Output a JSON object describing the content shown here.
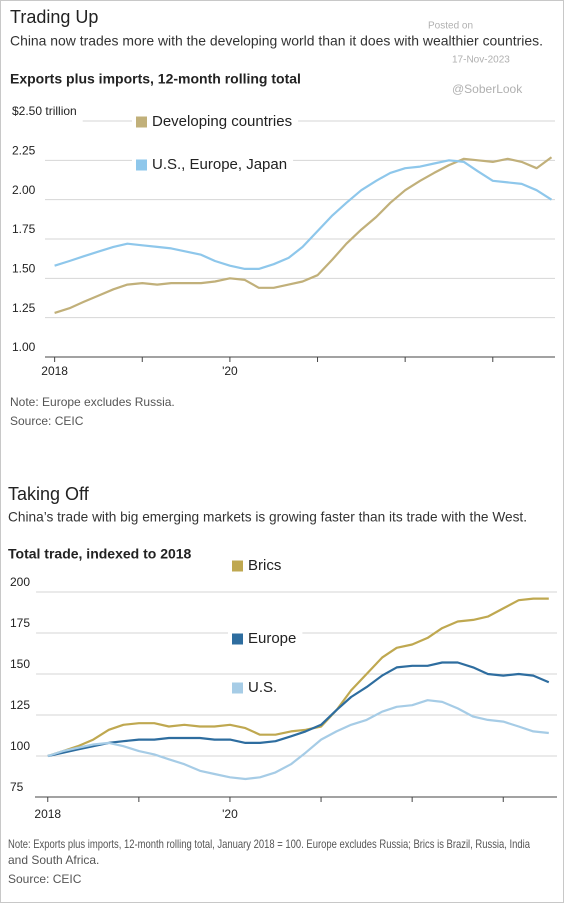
{
  "chart_data": [
    {
      "type": "line",
      "title": "Trading Up",
      "subtitle": "China now trades more with the developing world than it does with wealthier countries.",
      "axis_label": "Exports plus imports, 12-month rolling total",
      "note": [
        "Note: Europe excludes Russia."
      ],
      "source": "Source: CEIC",
      "x": [
        2018,
        2018.17,
        2018.33,
        2018.5,
        2018.67,
        2018.83,
        2019,
        2019.17,
        2019.33,
        2019.5,
        2019.67,
        2019.83,
        2020,
        2020.17,
        2020.33,
        2020.5,
        2020.67,
        2020.83,
        2021,
        2021.17,
        2021.33,
        2021.5,
        2021.67,
        2021.83,
        2022,
        2022.17,
        2022.33,
        2022.5,
        2022.67,
        2022.83,
        2023,
        2023.17,
        2023.33,
        2023.5,
        2023.67
      ],
      "series": [
        {
          "name": "Developing countries",
          "color": "#c1b07a",
          "values": [
            1.28,
            1.31,
            1.35,
            1.39,
            1.43,
            1.46,
            1.47,
            1.46,
            1.47,
            1.47,
            1.47,
            1.48,
            1.5,
            1.49,
            1.44,
            1.44,
            1.46,
            1.48,
            1.52,
            1.62,
            1.72,
            1.81,
            1.89,
            1.98,
            2.06,
            2.12,
            2.17,
            2.22,
            2.26,
            2.25,
            2.24,
            2.26,
            2.24,
            2.2,
            2.27
          ]
        },
        {
          "name": "U.S., Europe, Japan",
          "color": "#8ec7eb",
          "values": [
            1.58,
            1.61,
            1.64,
            1.67,
            1.7,
            1.72,
            1.71,
            1.7,
            1.69,
            1.67,
            1.65,
            1.61,
            1.58,
            1.56,
            1.56,
            1.59,
            1.63,
            1.7,
            1.8,
            1.9,
            1.98,
            2.06,
            2.12,
            2.17,
            2.2,
            2.21,
            2.23,
            2.25,
            2.24,
            2.18,
            2.12,
            2.11,
            2.1,
            2.06,
            2.0
          ]
        }
      ],
      "xlim": [
        2017.89,
        2023.71
      ],
      "xticks": [
        2018,
        {
          "value": 2020,
          "label": "'20"
        }
      ],
      "xminor": [
        2019,
        2021,
        2022,
        2023
      ],
      "ylim": [
        1.0,
        2.5
      ],
      "yticks": [
        {
          "value": 2.5,
          "label": "$2.50 trillion"
        },
        2.25,
        {
          "value": 2.0,
          "label": "2.00"
        },
        1.75,
        {
          "value": 1.5,
          "label": "1.50"
        },
        1.25,
        {
          "value": 1.0,
          "label": "1.00"
        }
      ],
      "grid": true
    },
    {
      "type": "line",
      "title": "Taking Off",
      "subtitle": "China’s trade with big emerging markets is growing faster than its trade with the West.",
      "axis_label": "Total trade, indexed to 2018",
      "note": [
        "Note: Exports plus imports, 12-month rolling total, January 2018 = 100. Europe excludes Russia; Brics is Brazil, Russia, India",
        "and South Africa."
      ],
      "source": "Source: CEIC",
      "x": [
        2018,
        2018.17,
        2018.33,
        2018.5,
        2018.67,
        2018.83,
        2019,
        2019.17,
        2019.33,
        2019.5,
        2019.67,
        2019.83,
        2020,
        2020.17,
        2020.33,
        2020.5,
        2020.67,
        2020.83,
        2021,
        2021.17,
        2021.33,
        2021.5,
        2021.67,
        2021.83,
        2022,
        2022.17,
        2022.33,
        2022.5,
        2022.67,
        2022.83,
        2023,
        2023.17,
        2023.33,
        2023.5
      ],
      "series": [
        {
          "name": "Brics",
          "color": "#bfa850",
          "values": [
            100,
            103,
            106,
            110,
            116,
            119,
            120,
            120,
            118,
            119,
            118,
            118,
            119,
            117,
            113,
            113,
            115,
            116,
            118,
            128,
            140,
            150,
            160,
            166,
            168,
            172,
            178,
            182,
            183,
            185,
            190,
            195,
            196,
            196
          ]
        },
        {
          "name": "Europe",
          "color": "#2e6d9f",
          "values": [
            100,
            102,
            104,
            106,
            108,
            109,
            110,
            110,
            111,
            111,
            111,
            110,
            110,
            108,
            108,
            109,
            112,
            115,
            119,
            128,
            136,
            142,
            149,
            154,
            155,
            155,
            157,
            157,
            154,
            150,
            149,
            150,
            149,
            145
          ]
        },
        {
          "name": "U.S.",
          "color": "#a6cce6",
          "values": [
            100,
            103,
            105,
            107,
            108,
            106,
            103,
            101,
            98,
            95,
            91,
            89,
            87,
            86,
            87,
            90,
            95,
            102,
            110,
            115,
            119,
            122,
            127,
            130,
            131,
            134,
            133,
            129,
            124,
            122,
            121,
            118,
            115,
            114
          ]
        }
      ],
      "xlim": [
        2017.86,
        2023.59
      ],
      "xticks": [
        2018,
        {
          "value": 2020,
          "label": "'20"
        }
      ],
      "xminor": [
        2019,
        2021,
        2022,
        2023
      ],
      "ylim": [
        75,
        200
      ],
      "yticks": [
        200,
        175,
        150,
        125,
        100,
        75
      ],
      "grid": true
    }
  ],
  "watermark": {
    "posted": "Posted on",
    "date": "17-Nov-2023",
    "handle": "@SoberLook"
  }
}
